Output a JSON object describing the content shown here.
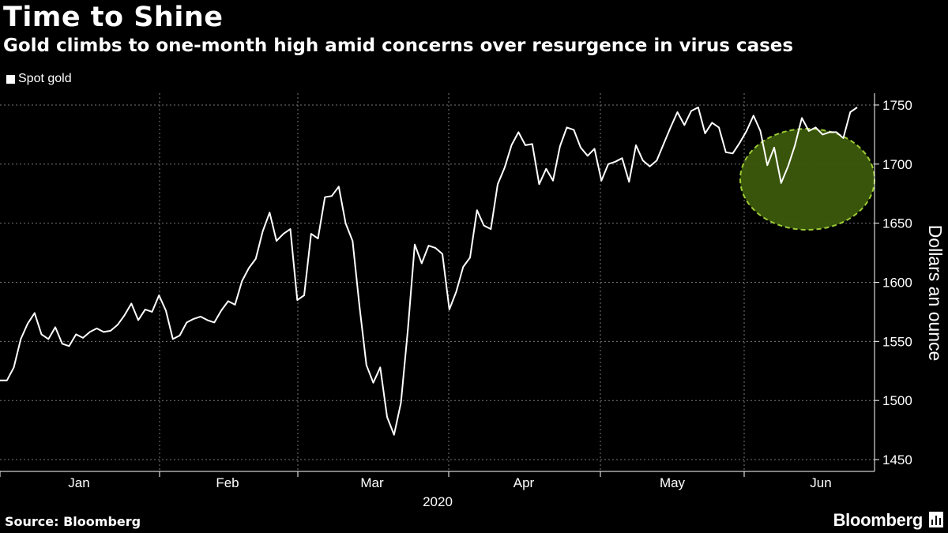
{
  "header": {
    "title": "Time to Shine",
    "subtitle": "Gold climbs to one-month high amid concerns over resurgence in virus cases"
  },
  "legend": {
    "label": "Spot gold"
  },
  "footer": {
    "source": "Source: Bloomberg",
    "brand": "Bloomberg"
  },
  "colors": {
    "background": "#000000",
    "line": "#ffffff",
    "highlight_fill": "#3d5a0c",
    "highlight_stroke": "#a6d639"
  },
  "chart_data": {
    "type": "line",
    "title": "Time to Shine",
    "subtitle": "Gold climbs to one-month high amid concerns over resurgence in virus cases",
    "xlabel": "2020",
    "ylabel": "Dollars an ounce",
    "ylim": [
      1440,
      1760
    ],
    "yticks": [
      1450,
      1500,
      1550,
      1600,
      1650,
      1700,
      1750
    ],
    "x_ticks": [
      "Jan",
      "Feb",
      "Mar",
      "Apr",
      "May",
      "Jun"
    ],
    "grid": true,
    "legend_position": "top-left",
    "annotation": "highlighted circle around June trading",
    "series": [
      {
        "name": "Spot gold",
        "values": [
          1517,
          1517,
          1528,
          1552,
          1565,
          1574,
          1556,
          1552,
          1562,
          1548,
          1546,
          1556,
          1553,
          1558,
          1561,
          1558,
          1559,
          1564,
          1572,
          1582,
          1568,
          1577,
          1575,
          1589,
          1576,
          1552,
          1555,
          1566,
          1569,
          1571,
          1568,
          1566,
          1576,
          1584,
          1581,
          1601,
          1612,
          1620,
          1643,
          1659,
          1635,
          1641,
          1645,
          1585,
          1589,
          1641,
          1637,
          1672,
          1673,
          1681,
          1650,
          1635,
          1580,
          1530,
          1515,
          1528,
          1486,
          1471,
          1498,
          1560,
          1632,
          1616,
          1631,
          1629,
          1624,
          1577,
          1592,
          1613,
          1621,
          1661,
          1648,
          1645,
          1683,
          1697,
          1716,
          1727,
          1716,
          1717,
          1683,
          1696,
          1686,
          1715,
          1731,
          1729,
          1714,
          1707,
          1713,
          1686,
          1700,
          1702,
          1705,
          1685,
          1716,
          1703,
          1698,
          1703,
          1717,
          1731,
          1744,
          1733,
          1745,
          1748,
          1726,
          1735,
          1731,
          1710,
          1709,
          1718,
          1728,
          1741,
          1728,
          1699,
          1714,
          1684,
          1698,
          1716,
          1739,
          1728,
          1731,
          1725,
          1727,
          1727,
          1722,
          1744,
          1748
        ]
      }
    ]
  }
}
